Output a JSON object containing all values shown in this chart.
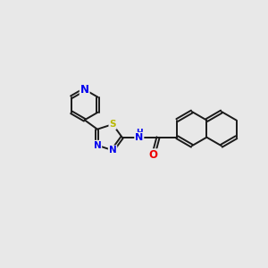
{
  "background_color": "#e8e8e8",
  "bond_color": "#1a1a1a",
  "bond_width": 1.4,
  "atom_colors": {
    "N": "#0000ee",
    "S": "#b8b800",
    "O": "#ee0000",
    "C": "#1a1a1a",
    "H": "#1a1a1a"
  },
  "font_size": 7.5,
  "figsize": [
    3.0,
    3.0
  ],
  "dpi": 100,
  "xlim": [
    0,
    10
  ],
  "ylim": [
    2,
    8
  ]
}
